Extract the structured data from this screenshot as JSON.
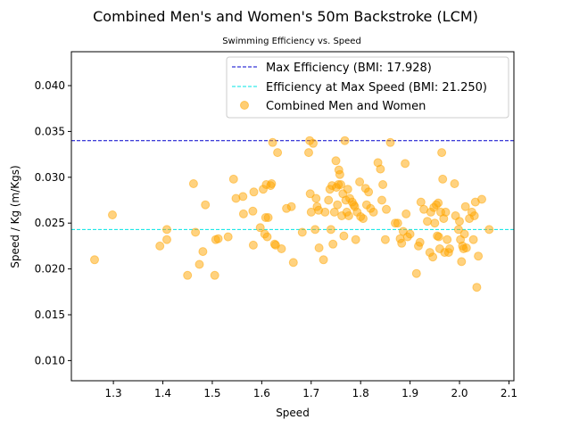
{
  "chart_data": {
    "type": "scatter",
    "title": "Combined Men's and Women's 50m Backstroke (LCM)",
    "subtitle": "Swimming Efficiency vs. Speed",
    "xlabel": "Speed",
    "ylabel": "Speed / Kg (m/Kgs)",
    "xlim": [
      1.215,
      2.11
    ],
    "ylim": [
      0.0078,
      0.0437
    ],
    "x_ticks": [
      "1.3",
      "1.4",
      "1.5",
      "1.6",
      "1.7",
      "1.8",
      "1.9",
      "2.0",
      "2.1"
    ],
    "y_ticks": [
      "0.010",
      "0.015",
      "0.020",
      "0.025",
      "0.030",
      "0.035",
      "0.040"
    ],
    "grid": false,
    "legend_position": "top-right",
    "hlines": [
      {
        "name": "Max Efficiency (BMI: 17.928)",
        "y": 0.034,
        "color": "#0000cc",
        "style": "dashed"
      },
      {
        "name": "Efficiency at Max Speed (BMI: 21.250)",
        "y": 0.0243,
        "color": "#00e5e5",
        "style": "dashed"
      }
    ],
    "series": [
      {
        "name": "Combined Men and Women",
        "color": "#ffa500",
        "points": [
          [
            1.262,
            0.021
          ],
          [
            1.298,
            0.0259
          ],
          [
            1.394,
            0.0225
          ],
          [
            1.408,
            0.0243
          ],
          [
            1.408,
            0.0232
          ],
          [
            1.45,
            0.0193
          ],
          [
            1.462,
            0.0293
          ],
          [
            1.466,
            0.024
          ],
          [
            1.474,
            0.0205
          ],
          [
            1.481,
            0.0219
          ],
          [
            1.486,
            0.027
          ],
          [
            1.505,
            0.0193
          ],
          [
            1.507,
            0.0232
          ],
          [
            1.512,
            0.0233
          ],
          [
            1.532,
            0.0235
          ],
          [
            1.543,
            0.0298
          ],
          [
            1.548,
            0.0277
          ],
          [
            1.562,
            0.0279
          ],
          [
            1.563,
            0.026
          ],
          [
            1.582,
            0.0263
          ],
          [
            1.583,
            0.0226
          ],
          [
            1.584,
            0.0284
          ],
          [
            1.597,
            0.0245
          ],
          [
            1.603,
            0.0287
          ],
          [
            1.606,
            0.0238
          ],
          [
            1.608,
            0.0256
          ],
          [
            1.609,
            0.0292
          ],
          [
            1.611,
            0.0235
          ],
          [
            1.613,
            0.0256
          ],
          [
            1.618,
            0.0291
          ],
          [
            1.62,
            0.0293
          ],
          [
            1.622,
            0.0338
          ],
          [
            1.626,
            0.0227
          ],
          [
            1.628,
            0.0226
          ],
          [
            1.632,
            0.0327
          ],
          [
            1.64,
            0.0222
          ],
          [
            1.65,
            0.0266
          ],
          [
            1.66,
            0.0268
          ],
          [
            1.664,
            0.0207
          ],
          [
            1.682,
            0.024
          ],
          [
            1.695,
            0.0327
          ],
          [
            1.697,
            0.034
          ],
          [
            1.698,
            0.0282
          ],
          [
            1.7,
            0.0262
          ],
          [
            1.704,
            0.0337
          ],
          [
            1.708,
            0.0243
          ],
          [
            1.71,
            0.0277
          ],
          [
            1.712,
            0.0268
          ],
          [
            1.715,
            0.0264
          ],
          [
            1.716,
            0.0223
          ],
          [
            1.725,
            0.021
          ],
          [
            1.728,
            0.0262
          ],
          [
            1.735,
            0.0275
          ],
          [
            1.738,
            0.0287
          ],
          [
            1.74,
            0.0243
          ],
          [
            1.742,
            0.0291
          ],
          [
            1.744,
            0.0227
          ],
          [
            1.747,
            0.0262
          ],
          [
            1.75,
            0.0318
          ],
          [
            1.751,
            0.0289
          ],
          [
            1.753,
            0.027
          ],
          [
            1.755,
            0.0292
          ],
          [
            1.756,
            0.0308
          ],
          [
            1.758,
            0.0303
          ],
          [
            1.76,
            0.0292
          ],
          [
            1.762,
            0.0258
          ],
          [
            1.764,
            0.0282
          ],
          [
            1.766,
            0.0236
          ],
          [
            1.768,
            0.034
          ],
          [
            1.77,
            0.0275
          ],
          [
            1.772,
            0.0262
          ],
          [
            1.774,
            0.0287
          ],
          [
            1.776,
            0.0258
          ],
          [
            1.778,
            0.0277
          ],
          [
            1.783,
            0.0273
          ],
          [
            1.786,
            0.027
          ],
          [
            1.788,
            0.0268
          ],
          [
            1.79,
            0.0232
          ],
          [
            1.793,
            0.0262
          ],
          [
            1.798,
            0.0295
          ],
          [
            1.8,
            0.0257
          ],
          [
            1.805,
            0.0255
          ],
          [
            1.81,
            0.0288
          ],
          [
            1.812,
            0.027
          ],
          [
            1.816,
            0.0284
          ],
          [
            1.82,
            0.0266
          ],
          [
            1.826,
            0.0262
          ],
          [
            1.835,
            0.0316
          ],
          [
            1.84,
            0.0309
          ],
          [
            1.843,
            0.0275
          ],
          [
            1.845,
            0.0292
          ],
          [
            1.85,
            0.0232
          ],
          [
            1.852,
            0.0265
          ],
          [
            1.86,
            0.0338
          ],
          [
            1.87,
            0.025
          ],
          [
            1.875,
            0.025
          ],
          [
            1.88,
            0.0233
          ],
          [
            1.883,
            0.0228
          ],
          [
            1.886,
            0.0241
          ],
          [
            1.89,
            0.0315
          ],
          [
            1.892,
            0.026
          ],
          [
            1.895,
            0.0235
          ],
          [
            1.9,
            0.0238
          ],
          [
            1.913,
            0.0195
          ],
          [
            1.917,
            0.0225
          ],
          [
            1.92,
            0.0229
          ],
          [
            1.922,
            0.0273
          ],
          [
            1.928,
            0.0265
          ],
          [
            1.935,
            0.0252
          ],
          [
            1.94,
            0.0218
          ],
          [
            1.942,
            0.0262
          ],
          [
            1.946,
            0.0213
          ],
          [
            1.948,
            0.0267
          ],
          [
            1.95,
            0.025
          ],
          [
            1.953,
            0.027
          ],
          [
            1.955,
            0.0236
          ],
          [
            1.957,
            0.0272
          ],
          [
            1.958,
            0.0235
          ],
          [
            1.96,
            0.0222
          ],
          [
            1.962,
            0.0262
          ],
          [
            1.964,
            0.0327
          ],
          [
            1.966,
            0.0298
          ],
          [
            1.968,
            0.0255
          ],
          [
            1.97,
            0.0218
          ],
          [
            1.972,
            0.0262
          ],
          [
            1.975,
            0.0232
          ],
          [
            1.978,
            0.0218
          ],
          [
            1.98,
            0.0222
          ],
          [
            1.99,
            0.0293
          ],
          [
            1.992,
            0.0258
          ],
          [
            1.998,
            0.0243
          ],
          [
            2.0,
            0.0252
          ],
          [
            2.002,
            0.0232
          ],
          [
            2.004,
            0.0208
          ],
          [
            2.006,
            0.0225
          ],
          [
            2.008,
            0.0222
          ],
          [
            2.01,
            0.0238
          ],
          [
            2.012,
            0.0268
          ],
          [
            2.014,
            0.0223
          ],
          [
            2.02,
            0.0255
          ],
          [
            2.025,
            0.0262
          ],
          [
            2.028,
            0.0232
          ],
          [
            2.03,
            0.0258
          ],
          [
            2.032,
            0.0273
          ],
          [
            2.035,
            0.018
          ],
          [
            2.038,
            0.0214
          ],
          [
            2.045,
            0.0276
          ],
          [
            2.06,
            0.0243
          ]
        ]
      }
    ]
  }
}
